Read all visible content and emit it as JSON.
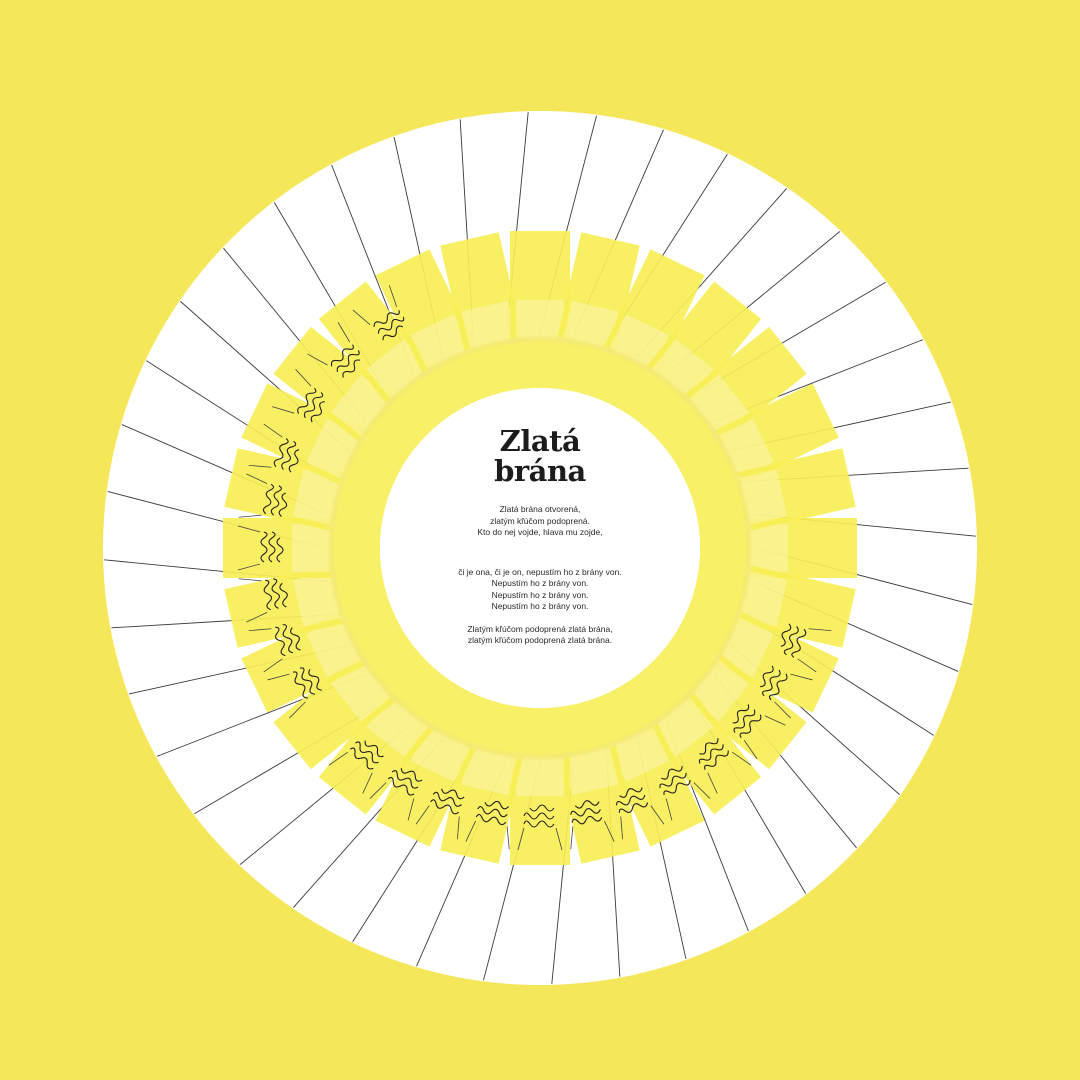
{
  "background_color": "#f4e75a",
  "disc_color": "#ffffff",
  "ring_color": "#f7ee55",
  "line_color": "#3a3a3a",
  "poem": {
    "title": "Zlatá\nbrána",
    "stanzas": [
      [
        "Zlatá brána otvorená,",
        "zlatým kľúčom podoprená.",
        "Kto do nej vojde, hlava mu zojde,"
      ],
      [
        "či je ona, či je on, nepustím ho z brány von.",
        "Nepustím ho z brány von.",
        "Nepustím ho z brány von.",
        "Nepustím ho z brány von."
      ],
      [
        "Zlatým kľúčom podoprená zlatá brána,",
        "zlatým kľúčom podoprená zlatá brána."
      ]
    ]
  },
  "decoration": {
    "rays": 40,
    "ring_segments": 28,
    "icons": [
      "clasped-hands-icon"
    ]
  }
}
